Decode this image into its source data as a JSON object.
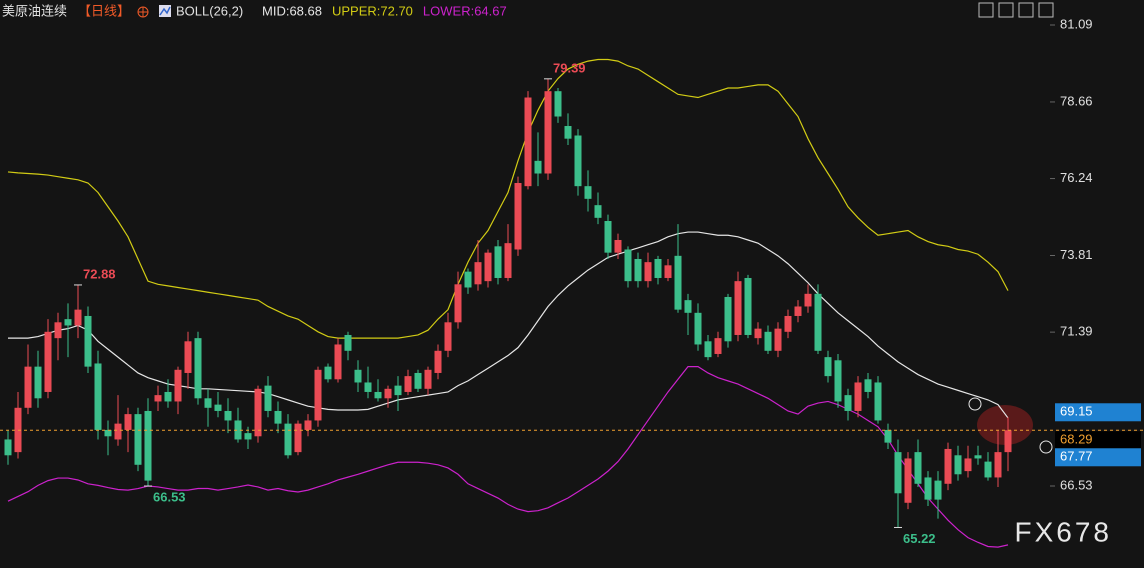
{
  "chart_data": {
    "type": "candlestick",
    "title": "美原油连续",
    "period": "【日线】",
    "indicator": "BOLL(26,2)",
    "up_color": "#ea4b55",
    "down_color": "#3cbf8b",
    "open": [
      68.0,
      67.6,
      69.0,
      70.3,
      69.5,
      71.2,
      71.8,
      71.6,
      71.9,
      70.4,
      68.3,
      68.0,
      68.3,
      68.8,
      68.9,
      69.2,
      69.5,
      69.2,
      70.1,
      71.2,
      69.3,
      69.1,
      68.9,
      68.6,
      68.2,
      68.1,
      69.7,
      68.9,
      68.5,
      67.6,
      68.3,
      68.6,
      70.3,
      69.9,
      71.3,
      70.2,
      69.8,
      69.5,
      69.3,
      69.7,
      69.5,
      70.1,
      69.6,
      70.1,
      70.8,
      71.7,
      73.3,
      72.9,
      73.0,
      74.1,
      73.1,
      74.0,
      76.0,
      76.8,
      76.4,
      79.0,
      77.9,
      77.6,
      76.0,
      75.4,
      74.9,
      73.9,
      74.0,
      73.7,
      73.0,
      73.7,
      73.1,
      73.8,
      72.4,
      72.0,
      71.1,
      70.7,
      72.5,
      71.3,
      73.1,
      71.2,
      71.4,
      70.8,
      71.4,
      71.9,
      72.2,
      72.6,
      70.6,
      70.5,
      69.4,
      68.9,
      69.9,
      69.8,
      68.3,
      67.6,
      66.0,
      67.6,
      66.8,
      66.7,
      66.6,
      67.5,
      67.0,
      67.5,
      67.3,
      66.8,
      67.6
    ],
    "high": [
      68.3,
      69.5,
      71.0,
      70.8,
      71.8,
      72.0,
      72.3,
      72.88,
      72.2,
      70.8,
      68.6,
      69.4,
      69.0,
      69.0,
      69.3,
      69.7,
      69.9,
      70.3,
      71.4,
      71.4,
      69.6,
      69.5,
      69.3,
      69.0,
      68.4,
      69.7,
      70.0,
      69.2,
      68.8,
      68.6,
      68.8,
      70.3,
      70.4,
      71.2,
      71.4,
      70.5,
      70.3,
      69.9,
      69.7,
      70.0,
      70.2,
      70.2,
      70.3,
      71.0,
      72.0,
      73.3,
      73.4,
      74.3,
      74.0,
      74.3,
      74.8,
      76.3,
      79.0,
      77.7,
      79.39,
      79.1,
      78.3,
      77.8,
      76.5,
      75.8,
      75.1,
      74.5,
      74.1,
      73.9,
      73.9,
      73.8,
      73.7,
      74.8,
      72.6,
      72.3,
      71.3,
      71.4,
      72.6,
      73.3,
      73.2,
      71.7,
      71.6,
      71.7,
      72.1,
      72.4,
      72.9,
      72.9,
      70.8,
      70.7,
      69.6,
      70.0,
      70.1,
      70.0,
      68.5,
      68.0,
      67.6,
      68.0,
      67.0,
      67.0,
      67.9,
      67.8,
      67.8,
      67.8,
      67.6,
      68.3,
      68.7
    ],
    "low": [
      67.2,
      67.4,
      68.8,
      69.0,
      69.3,
      70.5,
      70.6,
      71.2,
      70.1,
      68.0,
      67.5,
      67.8,
      67.6,
      67.0,
      66.53,
      68.9,
      69.0,
      68.8,
      69.6,
      69.1,
      68.4,
      68.7,
      68.2,
      67.9,
      67.7,
      67.9,
      68.7,
      68.2,
      67.4,
      67.5,
      68.1,
      68.4,
      69.8,
      69.8,
      70.5,
      69.5,
      69.3,
      69.2,
      69.0,
      68.9,
      69.4,
      69.5,
      69.4,
      69.9,
      70.6,
      71.5,
      72.6,
      72.7,
      72.8,
      72.9,
      73.0,
      73.8,
      75.9,
      76.0,
      76.2,
      78.0,
      77.3,
      75.7,
      75.2,
      74.8,
      73.7,
      73.7,
      72.8,
      72.8,
      72.8,
      72.9,
      73.0,
      72.0,
      71.3,
      70.8,
      70.5,
      70.6,
      70.9,
      71.1,
      71.2,
      71.0,
      70.7,
      70.6,
      71.2,
      71.7,
      72.0,
      70.7,
      69.8,
      69.0,
      68.6,
      68.7,
      69.3,
      68.5,
      67.7,
      65.22,
      65.8,
      66.5,
      65.9,
      65.5,
      66.4,
      66.7,
      66.8,
      67.2,
      66.7,
      66.5,
      67.0
    ],
    "close": [
      67.5,
      69.0,
      70.3,
      69.3,
      71.4,
      71.7,
      71.6,
      72.1,
      70.3,
      68.3,
      68.1,
      68.5,
      68.8,
      67.2,
      66.7,
      69.4,
      69.2,
      70.2,
      71.1,
      69.3,
      69.0,
      68.9,
      68.6,
      68.0,
      68.0,
      69.6,
      68.9,
      68.5,
      67.5,
      68.5,
      68.6,
      70.2,
      69.9,
      71.0,
      70.8,
      69.8,
      69.5,
      69.3,
      69.6,
      69.4,
      70.0,
      69.6,
      70.2,
      70.8,
      71.7,
      72.9,
      72.8,
      73.6,
      73.9,
      73.1,
      74.2,
      76.1,
      78.8,
      76.4,
      79.0,
      78.2,
      77.5,
      76.0,
      75.6,
      75.0,
      73.9,
      74.3,
      73.0,
      73.0,
      73.6,
      73.1,
      73.5,
      72.1,
      72.0,
      71.0,
      70.6,
      71.2,
      71.1,
      73.0,
      71.3,
      71.5,
      70.8,
      71.5,
      71.9,
      72.2,
      72.6,
      70.8,
      70.0,
      69.2,
      68.9,
      69.8,
      69.5,
      68.6,
      67.9,
      66.3,
      67.4,
      66.6,
      66.1,
      66.1,
      67.7,
      66.9,
      67.4,
      67.4,
      66.8,
      67.6,
      68.29
    ],
    "series": [
      {
        "name": "MID:68.68",
        "color": "#e6e6e6",
        "values": [
          71.2,
          71.2,
          71.2,
          71.25,
          71.35,
          71.45,
          71.5,
          71.6,
          71.45,
          71.1,
          70.85,
          70.6,
          70.35,
          70.1,
          69.95,
          69.85,
          69.75,
          69.7,
          69.65,
          69.6,
          69.6,
          69.58,
          69.56,
          69.54,
          69.52,
          69.5,
          69.45,
          69.35,
          69.25,
          69.15,
          69.05,
          69.0,
          68.95,
          68.93,
          68.93,
          68.93,
          68.95,
          69.05,
          69.15,
          69.25,
          69.3,
          69.35,
          69.4,
          69.45,
          69.5,
          69.7,
          69.85,
          70.05,
          70.25,
          70.45,
          70.65,
          70.9,
          71.3,
          71.75,
          72.2,
          72.55,
          72.85,
          73.1,
          73.35,
          73.55,
          73.75,
          73.85,
          73.95,
          74.05,
          74.15,
          74.25,
          74.4,
          74.5,
          74.55,
          74.55,
          74.5,
          74.45,
          74.45,
          74.4,
          74.3,
          74.2,
          74.0,
          73.8,
          73.55,
          73.25,
          72.95,
          72.6,
          72.3,
          72.0,
          71.75,
          71.5,
          71.25,
          70.95,
          70.7,
          70.45,
          70.25,
          70.05,
          69.9,
          69.75,
          69.65,
          69.55,
          69.45,
          69.35,
          69.25,
          69.1,
          68.68
        ]
      },
      {
        "name": "UPPER:72.70",
        "color": "#d2cc14",
        "values": [
          76.45,
          76.42,
          76.4,
          76.38,
          76.35,
          76.3,
          76.25,
          76.2,
          76.1,
          75.8,
          75.35,
          74.9,
          74.4,
          73.7,
          73.0,
          72.9,
          72.85,
          72.8,
          72.75,
          72.7,
          72.65,
          72.6,
          72.55,
          72.5,
          72.45,
          72.4,
          72.2,
          72.05,
          71.9,
          71.8,
          71.6,
          71.4,
          71.25,
          71.2,
          71.2,
          71.2,
          71.2,
          71.2,
          71.2,
          71.2,
          71.25,
          71.3,
          71.45,
          71.8,
          72.1,
          72.9,
          73.6,
          74.2,
          74.6,
          75.2,
          75.8,
          76.8,
          77.7,
          78.4,
          79.0,
          79.4,
          79.7,
          79.85,
          79.95,
          80.0,
          80.0,
          79.95,
          79.8,
          79.7,
          79.5,
          79.3,
          79.1,
          78.9,
          78.85,
          78.8,
          78.9,
          79.0,
          79.1,
          79.1,
          79.15,
          79.2,
          79.2,
          79.0,
          78.6,
          78.2,
          77.5,
          76.9,
          76.4,
          75.9,
          75.35,
          75.0,
          74.7,
          74.45,
          74.5,
          74.55,
          74.6,
          74.4,
          74.25,
          74.15,
          74.1,
          74.0,
          73.95,
          73.85,
          73.6,
          73.3,
          72.7
        ]
      },
      {
        "name": "LOWER:64.67",
        "color": "#cc22cc",
        "values": [
          66.05,
          66.2,
          66.35,
          66.55,
          66.7,
          66.78,
          66.78,
          66.72,
          66.6,
          66.55,
          66.48,
          66.42,
          66.4,
          66.45,
          66.53,
          66.5,
          66.45,
          66.4,
          66.4,
          66.45,
          66.45,
          66.4,
          66.45,
          66.5,
          66.56,
          66.5,
          66.4,
          66.45,
          66.38,
          66.34,
          66.4,
          66.5,
          66.6,
          66.72,
          66.81,
          66.9,
          67.0,
          67.1,
          67.2,
          67.28,
          67.28,
          67.28,
          67.25,
          67.2,
          67.1,
          66.9,
          66.6,
          66.45,
          66.3,
          66.15,
          65.95,
          65.8,
          65.72,
          65.75,
          65.84,
          66.0,
          66.15,
          66.35,
          66.55,
          66.75,
          67.0,
          67.3,
          67.7,
          68.15,
          68.6,
          69.05,
          69.5,
          69.9,
          70.3,
          70.3,
          70.1,
          69.95,
          69.85,
          69.75,
          69.6,
          69.45,
          69.3,
          69.1,
          68.9,
          68.8,
          69.05,
          69.15,
          69.2,
          69.1,
          68.95,
          68.8,
          68.6,
          68.4,
          68.0,
          67.5,
          67.05,
          66.6,
          66.15,
          65.8,
          65.45,
          65.15,
          64.9,
          64.75,
          64.62,
          64.6,
          64.67
        ]
      }
    ],
    "ylim": [
      63.94,
      81.88
    ],
    "yticks": [
      81.09,
      78.66,
      76.24,
      73.81,
      71.39,
      66.53
    ],
    "high_low_labels": [
      72.88,
      66.53,
      79.39,
      65.22
    ],
    "last_price": 68.29,
    "last_price_color": "#f0a030",
    "price_tags": [
      {
        "value": 69.15,
        "color": "#1f82d2"
      },
      {
        "value": 67.77,
        "color": "#1f82d2"
      }
    ],
    "watermark": "FX678"
  }
}
